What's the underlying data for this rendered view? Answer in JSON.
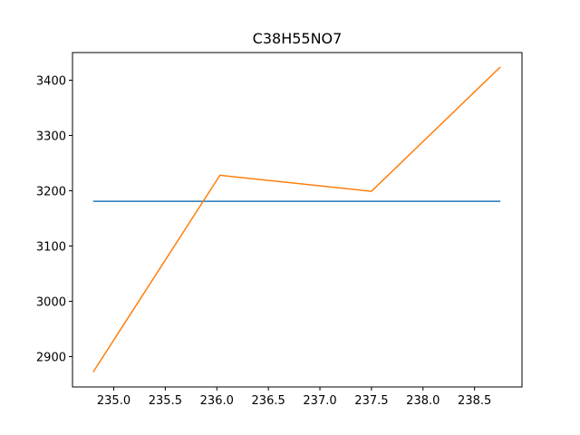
{
  "chart_data": {
    "type": "line",
    "title": "C38H55NO7",
    "xlabel": "",
    "ylabel": "",
    "xlim": [
      234.6,
      238.96
    ],
    "ylim": [
      2845,
      3450
    ],
    "xticks": [
      "235.0",
      "235.5",
      "236.0",
      "236.5",
      "237.0",
      "237.5",
      "238.0",
      "238.5"
    ],
    "yticks": [
      "2900",
      "3000",
      "3100",
      "3200",
      "3300",
      "3400"
    ],
    "grid": false,
    "colors": [
      "#1f77b4",
      "#ff7f0e"
    ],
    "series": [
      {
        "x": [
          234.8,
          238.75
        ],
        "y": [
          3181,
          3181
        ]
      },
      {
        "x": [
          234.8,
          236.03,
          237.5,
          238.75
        ],
        "y": [
          2872,
          3228,
          3199,
          3424
        ]
      }
    ]
  }
}
